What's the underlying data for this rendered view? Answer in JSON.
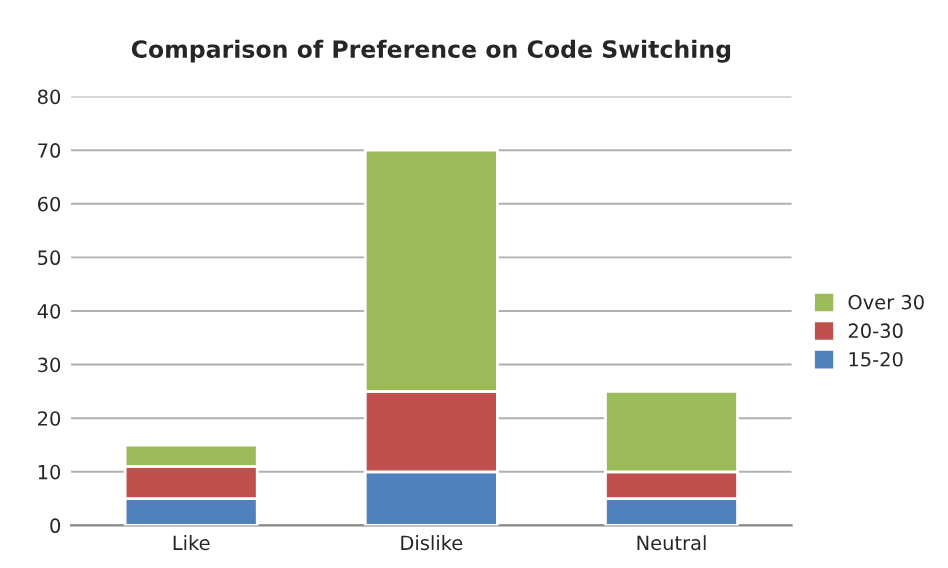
{
  "chart_data": {
    "type": "bar",
    "title": "Comparison of Preference on Code Switching",
    "categories": [
      "Like",
      "Dislike",
      "Neutral"
    ],
    "stacked": true,
    "series": [
      {
        "name": "15-20",
        "color": "#4f81bd",
        "values": [
          5,
          10,
          5
        ]
      },
      {
        "name": "20-30",
        "color": "#c0504d",
        "values": [
          6,
          15,
          5
        ]
      },
      {
        "name": "Over 30",
        "color": "#9bbb59",
        "values": [
          4,
          45,
          15
        ]
      }
    ],
    "ylim": [
      0,
      80
    ],
    "yticks": [
      0,
      10,
      20,
      30,
      40,
      50,
      60,
      70,
      80
    ],
    "grid": "y",
    "legend": "right"
  }
}
